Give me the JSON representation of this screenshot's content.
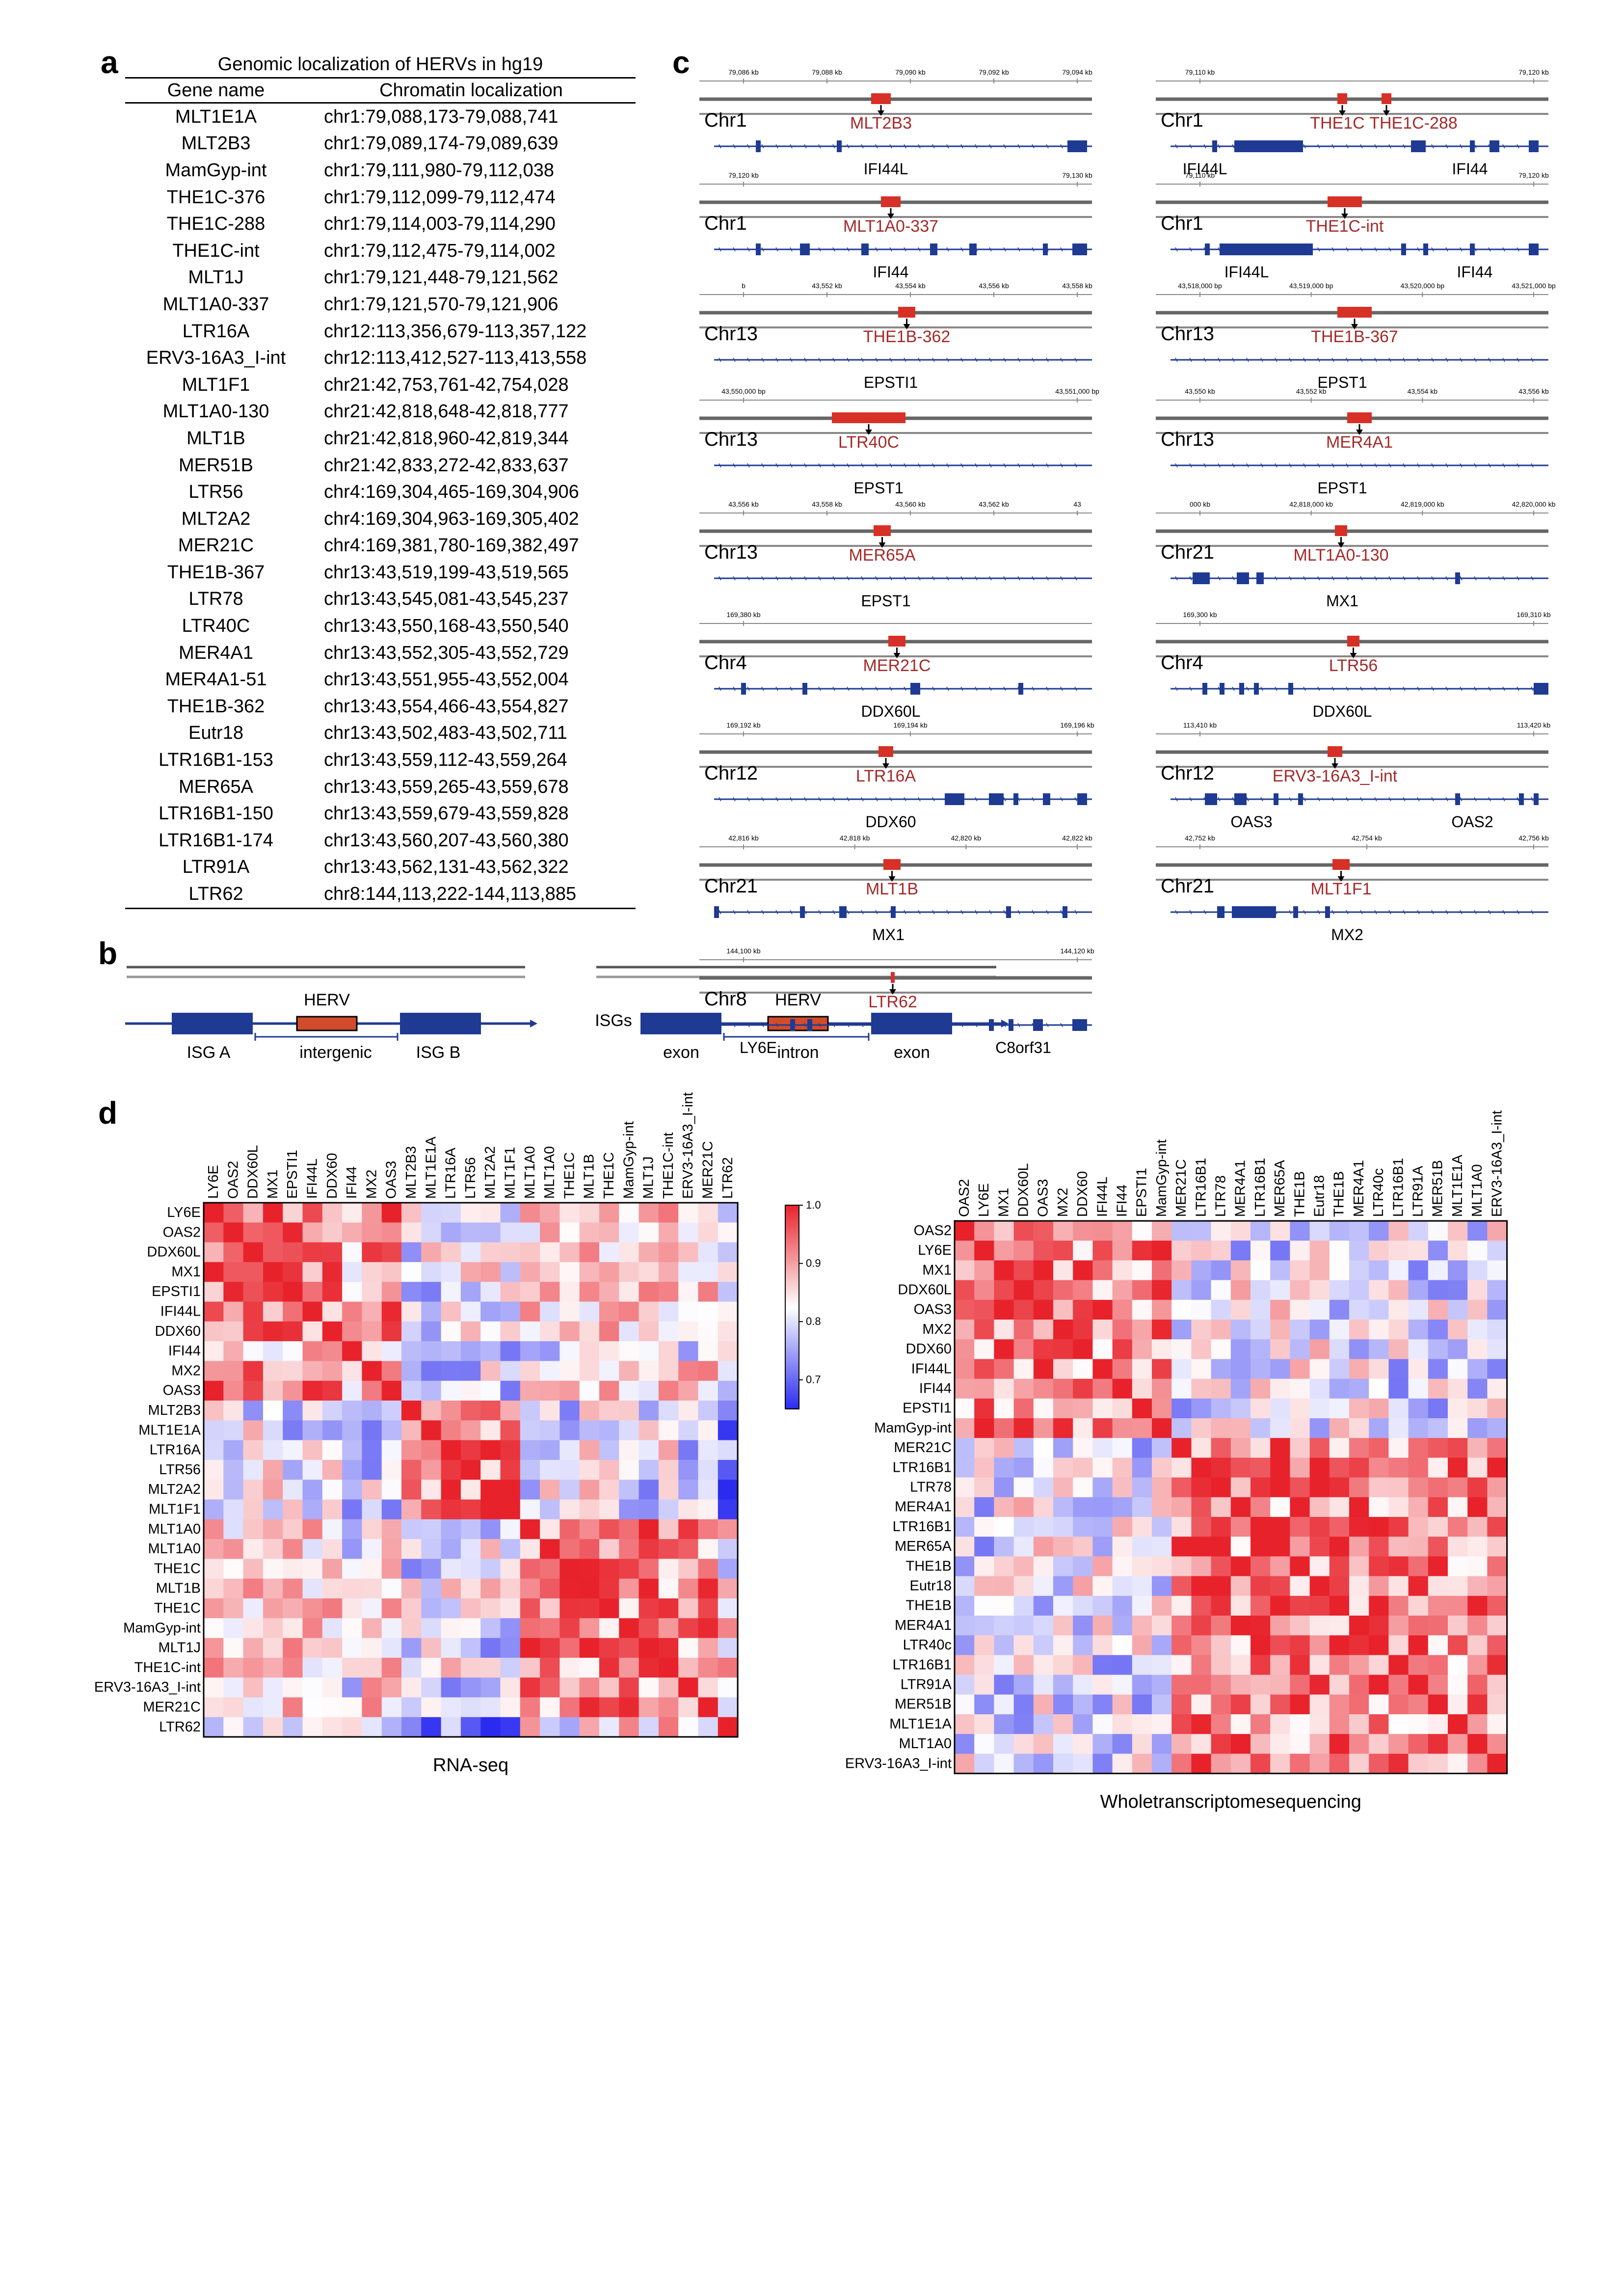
{
  "panel_labels": {
    "a": "a",
    "b": "b",
    "c": "c",
    "d": "d"
  },
  "panel_a": {
    "title": "Genomic localization of HERVs in hg19",
    "columns": [
      "Gene name",
      "Chromatin localization"
    ],
    "rows": [
      [
        "MLT1E1A",
        "chr1:79,088,173-79,088,741"
      ],
      [
        "MLT2B3",
        "chr1:79,089,174-79,089,639"
      ],
      [
        "MamGyp-int",
        "chr1:79,111,980-79,112,038"
      ],
      [
        "THE1C-376",
        "chr1:79,112,099-79,112,474"
      ],
      [
        "THE1C-288",
        "chr1:79,114,003-79,114,290"
      ],
      [
        "THE1C-int",
        "chr1:79,112,475-79,114,002"
      ],
      [
        "MLT1J",
        "chr1:79,121,448-79,121,562"
      ],
      [
        "MLT1A0-337",
        "chr1:79,121,570-79,121,906"
      ],
      [
        "LTR16A",
        "chr12:113,356,679-113,357,122"
      ],
      [
        "ERV3-16A3_I-int",
        "chr12:113,412,527-113,413,558"
      ],
      [
        "MLT1F1",
        "chr21:42,753,761-42,754,028"
      ],
      [
        "MLT1A0-130",
        "chr21:42,818,648-42,818,777"
      ],
      [
        "MLT1B",
        "chr21:42,818,960-42,819,344"
      ],
      [
        "MER51B",
        "chr21:42,833,272-42,833,637"
      ],
      [
        "LTR56",
        "chr4:169,304,465-169,304,906"
      ],
      [
        "MLT2A2",
        "chr4:169,304,963-169,305,402"
      ],
      [
        "MER21C",
        "chr4:169,381,780-169,382,497"
      ],
      [
        "THE1B-367",
        "chr13:43,519,199-43,519,565"
      ],
      [
        "LTR78",
        "chr13:43,545,081-43,545,237"
      ],
      [
        "LTR40C",
        "chr13:43,550,168-43,550,540"
      ],
      [
        "MER4A1",
        "chr13:43,552,305-43,552,729"
      ],
      [
        "MER4A1-51",
        "chr13:43,551,955-43,552,004"
      ],
      [
        "THE1B-362",
        "chr13:43,554,466-43,554,827"
      ],
      [
        "Eutr18",
        "chr13:43,502,483-43,502,711"
      ],
      [
        "LTR16B1-153",
        "chr13:43,559,112-43,559,264"
      ],
      [
        "MER65A",
        "chr13:43,559,265-43,559,678"
      ],
      [
        "LTR16B1-150",
        "chr13:43,559,679-43,559,828"
      ],
      [
        "LTR16B1-174",
        "chr13:43,560,207-43,560,380"
      ],
      [
        "LTR91A",
        "chr13:43,562,131-43,562,322"
      ],
      [
        "LTR62",
        "chr8:144,113,222-144,113,885"
      ]
    ]
  },
  "panel_b": {
    "left": {
      "herv": "HERV",
      "isg_a": "ISG  A",
      "intergenic": "intergenic",
      "isg_b": "ISG B"
    },
    "right": {
      "isgs": "ISGs",
      "herv": "HERV",
      "exon1": "exon",
      "intron": "intron",
      "exon2": "exon"
    }
  },
  "panel_c": {
    "tracks": [
      {
        "chr": "Chr1",
        "herv": "MLT2B3",
        "genes": [
          "IFI44L"
        ],
        "ticks": [
          "79,086 kb",
          "79,088 kb",
          "79,090 kb",
          "79,092 kb",
          "79,094 kb"
        ]
      },
      {
        "chr": "Chr1",
        "herv": "THE1C",
        "herv2": "THE1C-288",
        "genes": [
          "IFI44L",
          "IFI44"
        ],
        "ticks": [
          "79,110 kb",
          "79,120 kb"
        ]
      },
      {
        "chr": "Chr1",
        "herv": "MLT1A0-337",
        "genes": [
          "IFI44"
        ],
        "ticks": [
          "79,120 kb",
          "79,130 kb"
        ]
      },
      {
        "chr": "Chr1",
        "herv": "THE1C-int",
        "genes": [
          "IFI44L",
          "IFI44"
        ],
        "ticks": [
          "79,110 kb",
          "79,120 kb"
        ]
      },
      {
        "chr": "Chr13",
        "herv": "THE1B-362",
        "genes": [
          "EPSTI1"
        ],
        "ticks": [
          "b",
          "43,552 kb",
          "43,554 kb",
          "43,556 kb",
          "43,558 kb"
        ]
      },
      {
        "chr": "Chr13",
        "herv": "THE1B-367",
        "genes": [
          "EPST1"
        ],
        "ticks": [
          "43,518,000 bp",
          "43,519,000 bp",
          "43,520,000 bp",
          "43,521,000 bp"
        ]
      },
      {
        "chr": "Chr13",
        "herv": "LTR40C",
        "genes": [
          "EPST1"
        ],
        "ticks": [
          "43,550,000 bp",
          "43,551,000 bp"
        ]
      },
      {
        "chr": "Chr13",
        "herv": "MER4A1",
        "genes": [
          "EPST1"
        ],
        "ticks": [
          "43,550 kb",
          "43,552 kb",
          "43,554 kb",
          "43,556 kb"
        ]
      },
      {
        "chr": "Chr13",
        "herv": "MER65A",
        "genes": [
          "EPST1"
        ],
        "ticks": [
          "43,556 kb",
          "43,558 kb",
          "43,560 kb",
          "43,562 kb",
          "43"
        ]
      },
      {
        "chr": "Chr21",
        "herv": "MLT1A0-130",
        "genes": [
          "MX1"
        ],
        "ticks": [
          "000 kb",
          "42,818,000 kb",
          "42,819,000 kb",
          "42,820,000 kb"
        ]
      },
      {
        "chr": "Chr4",
        "herv": "MER21C",
        "genes": [
          "DDX60L"
        ],
        "ticks": [
          "169,380 kb"
        ]
      },
      {
        "chr": "Chr4",
        "herv": "LTR56",
        "genes": [
          "DDX60L"
        ],
        "ticks": [
          "169,300 kb",
          "169,310 kb"
        ]
      },
      {
        "chr": "Chr12",
        "herv": "LTR16A",
        "genes": [
          "DDX60"
        ],
        "ticks": [
          "169,192 kb",
          "169,194 kb",
          "169,196 kb"
        ]
      },
      {
        "chr": "Chr12",
        "herv": "ERV3-16A3_I-int",
        "genes": [
          "OAS3",
          "OAS2"
        ],
        "ticks": [
          "113,410 kb",
          "113,420 kb"
        ]
      },
      {
        "chr": "Chr21",
        "herv": "MLT1B",
        "genes": [
          "MX1"
        ],
        "ticks": [
          "42,816 kb",
          "42,818 kb",
          "42,820 kb",
          "42,822 kb"
        ]
      },
      {
        "chr": "Chr21",
        "herv": "MLT1F1",
        "genes": [
          "MX2"
        ],
        "ticks": [
          "42,752 kb",
          "42,754 kb",
          "42,756 kb"
        ]
      },
      {
        "chr": "Chr8",
        "herv": "LTR62",
        "genes": [
          "LY6E",
          "C8orf31"
        ],
        "ticks": [
          "144,100 kb",
          "144,120 kb"
        ]
      }
    ]
  },
  "chart_data": [
    {
      "type": "heatmap",
      "title": "RNA-seq",
      "columns": [
        "LY6E",
        "OAS2",
        "DDX60L",
        "MX1",
        "EPSTI1",
        "IFI44L",
        "DDX60",
        "IFI44",
        "MX2",
        "OAS3",
        "MLT2B3",
        "MLT1E1A",
        "LTR16A",
        "LTR56",
        "MLT2A2",
        "MLT1F1",
        "MLT1A0",
        "MLT1A0",
        "THE1C",
        "MLT1B",
        "THE1C",
        "MamGyp-int",
        "MLT1J",
        "THE1C-int",
        "ERV3-16A3_I-int",
        "MER21C",
        "LTR62"
      ],
      "rows": [
        "LY6E",
        "OAS2",
        "DDX60L",
        "MX1",
        "EPSTI1",
        "IFI44L",
        "DDX60",
        "IFI44",
        "MX2",
        "OAS3",
        "MLT2B3",
        "MLT1E1A",
        "LTR16A",
        "LTR56",
        "MLT2A2",
        "MLT1F1",
        "MLT1A0",
        "MLT1A0",
        "THE1C",
        "MLT1B",
        "THE1C",
        "MamGyp-int",
        "MLT1J",
        "THE1C-int",
        "ERV3-16A3_I-int",
        "MER21C",
        "LTR62"
      ],
      "colorbar": {
        "min": 0.65,
        "max": 1.0,
        "ticks": [
          "1.0",
          "0.9",
          "0.8",
          "0.7"
        ]
      },
      "groups": [
        [
          0,
          9
        ],
        [
          10,
          15
        ],
        [
          16,
          26
        ]
      ],
      "values_description_ok": false
    },
    {
      "type": "heatmap",
      "title": "Wholetranscriptomesequencing",
      "columns": [
        "OAS2",
        "LY6E",
        "MX1",
        "DDX60L",
        "OAS3",
        "MX2",
        "DDX60",
        "IFI44L",
        "IFI44",
        "EPSTI1",
        "MamGyp-int",
        "MER21C",
        "LTR16B1",
        "LTR78",
        "MER4A1",
        "LTR16B1",
        "MER65A",
        "THE1B",
        "Eutr18",
        "THE1B",
        "MER4A1",
        "LTR40c",
        "LTR16B1",
        "LTR91A",
        "MER51B",
        "MLT1E1A",
        "MLT1A0",
        "ERV3-16A3_I-int"
      ],
      "rows": [
        "OAS2",
        "LY6E",
        "MX1",
        "DDX60L",
        "OAS3",
        "MX2",
        "DDX60",
        "IFI44L",
        "IFI44",
        "EPSTI1",
        "MamGyp-int",
        "MER21C",
        "LTR16B1",
        "LTR78",
        "MER4A1",
        "LTR16B1",
        "MER65A",
        "THE1B",
        "Eutr18",
        "THE1B",
        "MER4A1",
        "LTR40c",
        "LTR16B1",
        "LTR91A",
        "MER51B",
        "MLT1E1A",
        "MLT1A0",
        "ERV3-16A3_I-int"
      ],
      "groups": [
        [
          0,
          10
        ],
        [
          11,
          27
        ]
      ]
    }
  ],
  "colors": {
    "herv_red": "#d73027",
    "gene_blue": "#1f3a93",
    "heat_high": "#e8222b",
    "heat_mid": "#ffffff",
    "heat_low": "#2b2bf0",
    "label_red": "#a42a2a"
  }
}
